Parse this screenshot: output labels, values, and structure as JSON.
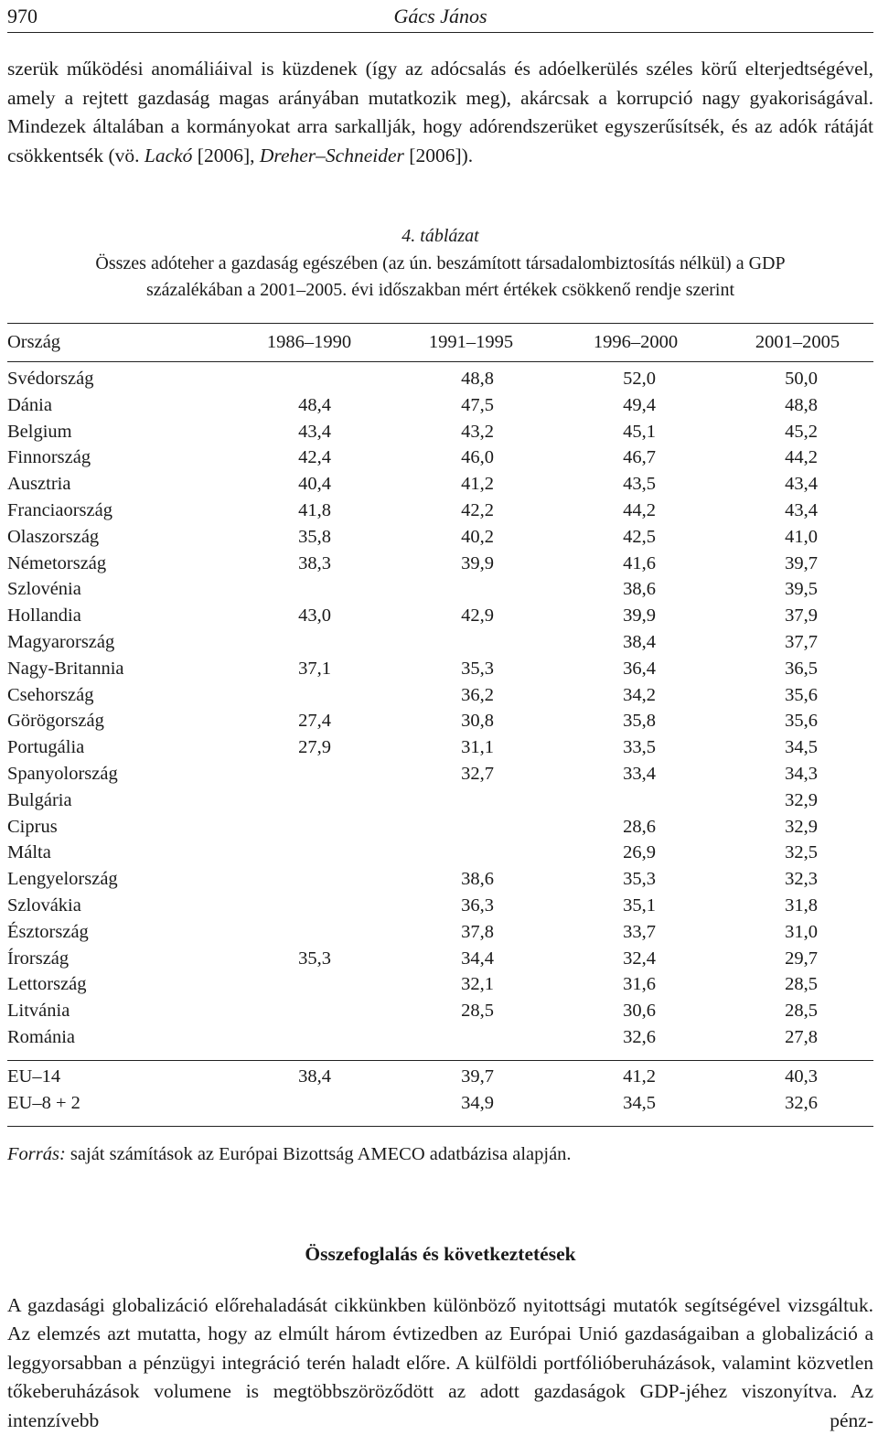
{
  "running_head": {
    "page_number": "970",
    "author": "Gács János"
  },
  "intro": {
    "text_1": "szerük működési anomáliáival is küzdenek (így az adócsalás és adóelkerülés széles körű elterjedtségével, amely a rejtett gazdaság magas arányában mutatkozik meg), akárcsak a korrupció nagy gyakoriságával. Mindezek általában a kormányokat arra sarkallják, hogy adórendszerüket egyszerűsítsék, és az adók rátáját csökkentsék (vö. ",
    "cite_1": "Lackó",
    "text_2": " [2006], ",
    "cite_2": "Dreher–Schneider",
    "text_3": " [2006])."
  },
  "table": {
    "number": "4. táblázat",
    "caption_line1": "Összes adóteher a gazdaság egészében (az ún. beszámított társadalombiztosítás nélkül) a GDP",
    "caption_line2": "százalékában a 2001–2005. évi időszakban mért értékek csökkenő rendje szerint",
    "columns": [
      "Ország",
      "1986–1990",
      "1991–1995",
      "1996–2000",
      "2001–2005"
    ],
    "rows": [
      [
        "Svédország",
        "",
        "48,8",
        "52,0",
        "50,0"
      ],
      [
        "Dánia",
        "48,4",
        "47,5",
        "49,4",
        "48,8"
      ],
      [
        "Belgium",
        "43,4",
        "43,2",
        "45,1",
        "45,2"
      ],
      [
        "Finnország",
        "42,4",
        "46,0",
        "46,7",
        "44,2"
      ],
      [
        "Ausztria",
        "40,4",
        "41,2",
        "43,5",
        "43,4"
      ],
      [
        "Franciaország",
        "41,8",
        "42,2",
        "44,2",
        "43,4"
      ],
      [
        "Olaszország",
        "35,8",
        "40,2",
        "42,5",
        "41,0"
      ],
      [
        "Németország",
        "38,3",
        "39,9",
        "41,6",
        "39,7"
      ],
      [
        "Szlovénia",
        "",
        "",
        "38,6",
        "39,5"
      ],
      [
        "Hollandia",
        "43,0",
        "42,9",
        "39,9",
        "37,9"
      ],
      [
        "Magyarország",
        "",
        "",
        "38,4",
        "37,7"
      ],
      [
        "Nagy-Britannia",
        "37,1",
        "35,3",
        "36,4",
        "36,5"
      ],
      [
        "Csehország",
        "",
        "36,2",
        "34,2",
        "35,6"
      ],
      [
        "Görögország",
        "27,4",
        "30,8",
        "35,8",
        "35,6"
      ],
      [
        "Portugália",
        "27,9",
        "31,1",
        "33,5",
        "34,5"
      ],
      [
        "Spanyolország",
        "",
        "32,7",
        "33,4",
        "34,3"
      ],
      [
        "Bulgária",
        "",
        "",
        "",
        "32,9"
      ],
      [
        "Ciprus",
        "",
        "",
        "28,6",
        "32,9"
      ],
      [
        "Málta",
        "",
        "",
        "26,9",
        "32,5"
      ],
      [
        "Lengyelország",
        "",
        "38,6",
        "35,3",
        "32,3"
      ],
      [
        "Szlovákia",
        "",
        "36,3",
        "35,1",
        "31,8"
      ],
      [
        "Észtország",
        "",
        "37,8",
        "33,7",
        "31,0"
      ],
      [
        "Írország",
        "35,3",
        "34,4",
        "32,4",
        "29,7"
      ],
      [
        "Lettország",
        "",
        "32,1",
        "31,6",
        "28,5"
      ],
      [
        "Litvánia",
        "",
        "28,5",
        "30,6",
        "28,5"
      ],
      [
        "Románia",
        "",
        "",
        "32,6",
        "27,8"
      ]
    ],
    "summary_rows": [
      [
        "EU–14",
        "38,4",
        "39,7",
        "41,2",
        "40,3"
      ],
      [
        "EU–8 + 2",
        "",
        "34,9",
        "34,5",
        "32,6"
      ]
    ]
  },
  "source": {
    "label": "Forrás:",
    "text": " saját számítások az Európai Bizottság AMECO adatbázisa alapján."
  },
  "section": {
    "title": "Összefoglalás és következtetések",
    "paragraph": "A gazdasági globalizáció előrehaladását cikkünkben különböző nyitottsági mutatók segítségével vizsgáltuk. Az elemzés azt mutatta, hogy az elmúlt három évtizedben az Európai Unió gazdaságaiban a globalizáció a leggyorsabban a pénzügyi integráció terén haladt előre. A külföldi portfólióberuházások, valamint közvetlen tőkeberuházások volumene is megtöbbszöröződött az adott gazdaságok GDP-jéhez viszonyítva. Az intenzívebb pénz-"
  }
}
